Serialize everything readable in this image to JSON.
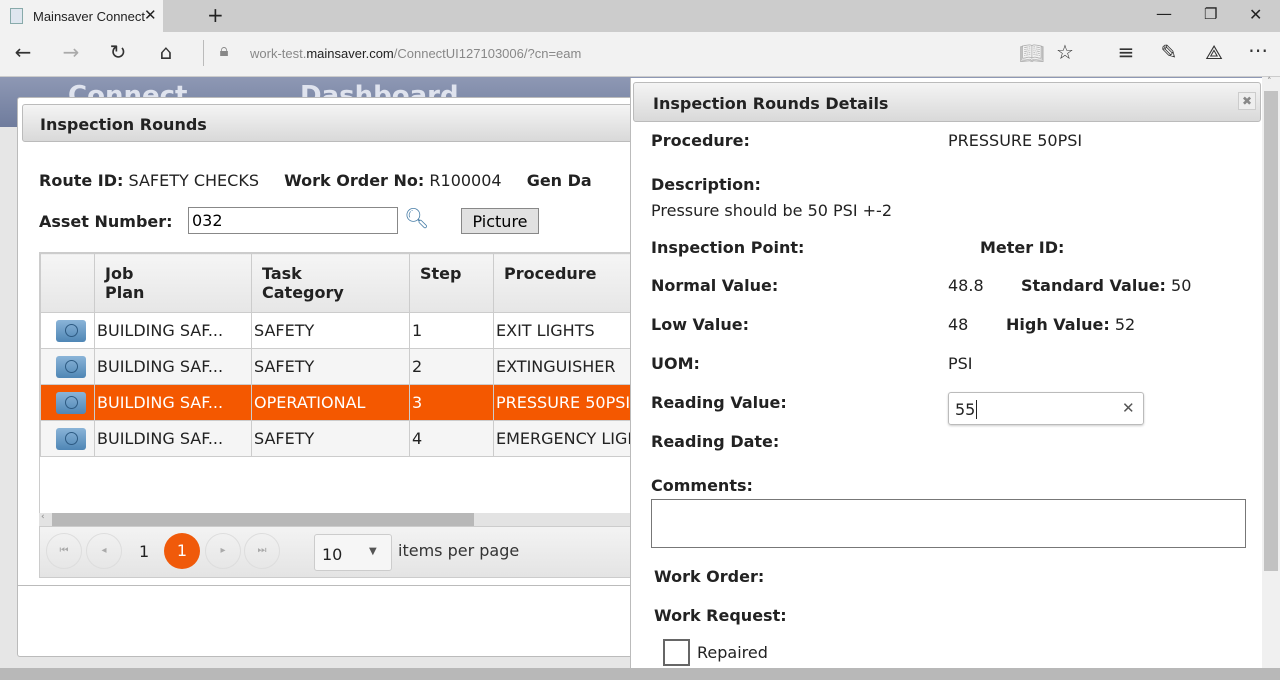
{
  "browser": {
    "tab_title": "Mainsaver Connect",
    "url_prefix": "work-test.",
    "url_domain": "mainsaver.com",
    "url_path": "/ConnectUI127103006/?cn=eam"
  },
  "background": {
    "app_name": "Connect",
    "page_title": "Dashboard"
  },
  "dialog": {
    "title": "Inspection Rounds",
    "route_id_label": "Route ID:",
    "route_id": "SAFETY CHECKS",
    "work_order_label": "Work Order No:",
    "work_order": "R100004",
    "gen_date_label": "Gen Da",
    "asset_label": "Asset Number:",
    "asset_value": "032",
    "picture_button": "Picture",
    "columns": [
      "Job\nPlan",
      "Task\nCategory",
      "Step",
      "Procedure"
    ],
    "rows": [
      {
        "job_plan": "BUILDING SAF...",
        "task_category": "SAFETY",
        "step": "1",
        "procedure": "EXIT LIGHTS"
      },
      {
        "job_plan": "BUILDING SAF...",
        "task_category": "SAFETY",
        "step": "2",
        "procedure": "EXTINGUISHER"
      },
      {
        "job_plan": "BUILDING SAF...",
        "task_category": "OPERATIONAL",
        "step": "3",
        "procedure": "PRESSURE 50PSI"
      },
      {
        "job_plan": "BUILDING SAF...",
        "task_category": "SAFETY",
        "step": "4",
        "procedure": "EMERGENCY LIGHTS"
      }
    ],
    "selected_row": 2,
    "pager": {
      "page_label": "1",
      "current_page": "1",
      "page_size": "10",
      "items_per_page": "items per page"
    }
  },
  "details": {
    "title": "Inspection Rounds Details",
    "procedure_label": "Procedure:",
    "procedure": "PRESSURE 50PSI",
    "description_label": "Description:",
    "description": "Pressure should be 50 PSI +-2",
    "inspection_point_label": "Inspection Point:",
    "meter_id_label": "Meter ID:",
    "normal_label": "Normal Value:",
    "normal": "48.8",
    "standard_label": "Standard Value:",
    "standard": "50",
    "low_label": "Low Value:",
    "low": "48",
    "high_label": "High Value:",
    "high": "52",
    "uom_label": "UOM:",
    "uom": "PSI",
    "reading_value_label": "Reading Value:",
    "reading_value": "55",
    "reading_date_label": "Reading Date:",
    "comments_label": "Comments:",
    "comments": "",
    "work_order_label": "Work Order:",
    "work_request_label": "Work Request:",
    "repaired_label": "Repaired",
    "repaired": false
  },
  "colors": {
    "accent": "#f45800"
  }
}
